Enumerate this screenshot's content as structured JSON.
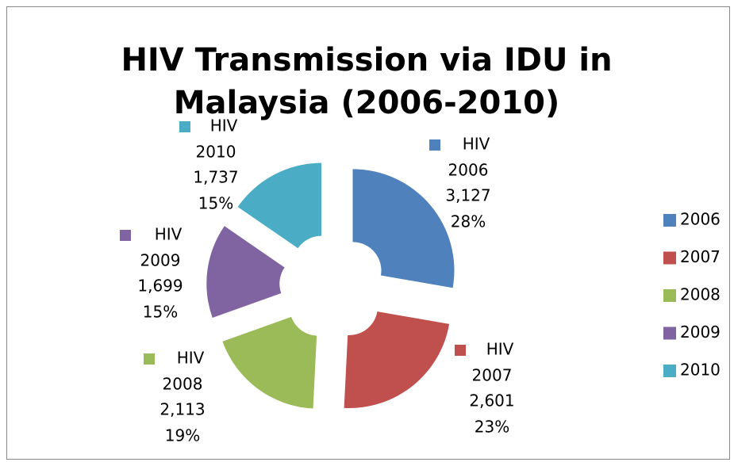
{
  "chart_data": {
    "type": "doughnut",
    "title": [
      "HIV Transmission via IDU in",
      "Malaysia (2006-2010)"
    ],
    "series_name": "HIV",
    "categories": [
      "2006",
      "2007",
      "2008",
      "2009",
      "2010"
    ],
    "values": [
      3127,
      2601,
      2113,
      1699,
      1737
    ],
    "value_labels": [
      "3,127",
      "2,601",
      "2,113",
      "1,699",
      "1,737"
    ],
    "percentage_labels": [
      "28%",
      "23%",
      "19%",
      "15%",
      "15%"
    ],
    "colors": [
      "#4f81bd",
      "#c0504d",
      "#9bbb59",
      "#8064a2",
      "#4bacc6"
    ],
    "legend": "right"
  }
}
